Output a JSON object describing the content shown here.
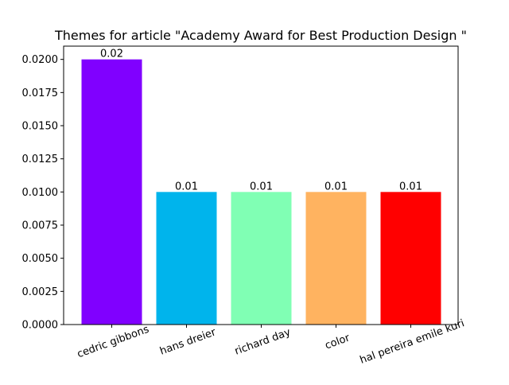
{
  "chart_data": {
    "type": "bar",
    "title": "Themes for article \"Academy Award for Best Production Design \"",
    "xlabel": "",
    "ylabel": "",
    "categories": [
      "cedric gibbons",
      "hans dreier",
      "richard day",
      "color",
      "hal pereira emile kuri"
    ],
    "values": [
      0.02,
      0.01,
      0.01,
      0.01,
      0.01
    ],
    "data_labels": [
      "0.02",
      "0.01",
      "0.01",
      "0.01",
      "0.01"
    ],
    "colors": [
      "#8000ff",
      "#00b4ec",
      "#80ffb4",
      "#ffb360",
      "#ff0000"
    ],
    "ylim": [
      0,
      0.021
    ],
    "yticks": [
      0.0,
      0.0025,
      0.005,
      0.0075,
      0.01,
      0.0125,
      0.015,
      0.0175,
      0.02
    ],
    "ytick_labels": [
      "0.0000",
      "0.0025",
      "0.0050",
      "0.0075",
      "0.0100",
      "0.0125",
      "0.0150",
      "0.0175",
      "0.0200"
    ],
    "xtick_rotation_deg": 20,
    "grid": false,
    "legend": "none"
  }
}
